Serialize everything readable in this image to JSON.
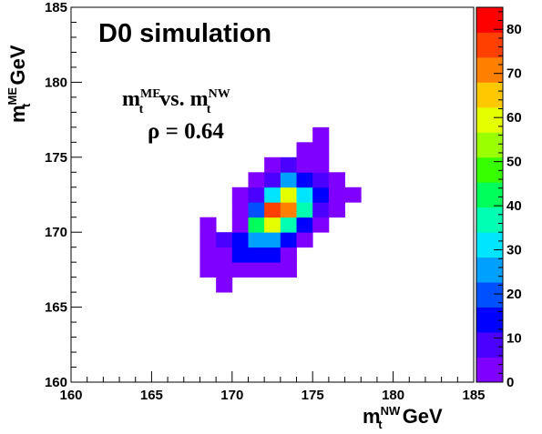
{
  "chart_data": {
    "type": "heatmap",
    "title": "D0 simulation",
    "subtitle_main": "m",
    "subtitle_sup1": "ME",
    "subtitle_sub1": "t",
    "subtitle_mid": " vs. m",
    "subtitle_sup2": "NW",
    "subtitle_sub2": "t",
    "correlation_label": "ρ = 0.64",
    "xlabel": {
      "main": "m",
      "sup": "NW",
      "sub": "t",
      "unit": " GeV"
    },
    "ylabel": {
      "main": "m",
      "sup": "ME",
      "sub": "t",
      "unit": " GeV"
    },
    "xlim": [
      160,
      185
    ],
    "ylim": [
      160,
      185
    ],
    "x_ticks": [
      "160",
      "165",
      "170",
      "175",
      "180",
      "185"
    ],
    "y_ticks": [
      "160",
      "165",
      "170",
      "175",
      "180",
      "185"
    ],
    "z_range": [
      0,
      85
    ],
    "z_ticks": [
      "0",
      "10",
      "20",
      "30",
      "40",
      "50",
      "60",
      "70",
      "80"
    ],
    "palette": [
      "#8000ff",
      "#4b00ff",
      "#0000ff",
      "#0050ff",
      "#00a0ff",
      "#00e5ff",
      "#00ffb3",
      "#00ff5a",
      "#38ff00",
      "#9aff00",
      "#e5ff00",
      "#ffc800",
      "#ff8000",
      "#ff4000",
      "#ff0000"
    ],
    "bin_size": 1,
    "bins": [
      [
        168.5,
        167.5,
        5
      ],
      [
        168.5,
        168.5,
        5
      ],
      [
        168.5,
        169.5,
        5
      ],
      [
        168.5,
        170.5,
        5
      ],
      [
        169.5,
        166.5,
        5
      ],
      [
        169.5,
        167.5,
        5
      ],
      [
        169.5,
        168.5,
        5
      ],
      [
        169.5,
        169.5,
        8
      ],
      [
        170.5,
        167.5,
        5
      ],
      [
        170.5,
        168.5,
        12
      ],
      [
        170.5,
        169.5,
        12
      ],
      [
        170.5,
        170.5,
        5
      ],
      [
        170.5,
        171.5,
        5
      ],
      [
        170.5,
        172.5,
        5
      ],
      [
        171.5,
        167.5,
        5
      ],
      [
        171.5,
        168.5,
        12
      ],
      [
        171.5,
        169.5,
        25
      ],
      [
        171.5,
        170.5,
        45
      ],
      [
        171.5,
        171.5,
        20
      ],
      [
        171.5,
        172.5,
        10
      ],
      [
        171.5,
        173.5,
        5
      ],
      [
        172.5,
        167.5,
        5
      ],
      [
        172.5,
        168.5,
        15
      ],
      [
        172.5,
        169.5,
        28
      ],
      [
        172.5,
        170.5,
        60
      ],
      [
        172.5,
        171.5,
        75
      ],
      [
        172.5,
        172.5,
        30
      ],
      [
        172.5,
        173.5,
        8
      ],
      [
        172.5,
        174.5,
        5
      ],
      [
        173.5,
        167.5,
        5
      ],
      [
        173.5,
        168.5,
        5
      ],
      [
        173.5,
        169.5,
        12
      ],
      [
        173.5,
        170.5,
        35
      ],
      [
        173.5,
        171.5,
        70
      ],
      [
        173.5,
        172.5,
        60
      ],
      [
        173.5,
        173.5,
        25
      ],
      [
        173.5,
        174.5,
        8
      ],
      [
        174.5,
        169.5,
        5
      ],
      [
        174.5,
        170.5,
        12
      ],
      [
        174.5,
        171.5,
        38
      ],
      [
        174.5,
        172.5,
        32
      ],
      [
        174.5,
        173.5,
        12
      ],
      [
        174.5,
        174.5,
        5
      ],
      [
        174.5,
        175.5,
        5
      ],
      [
        175.5,
        170.5,
        5
      ],
      [
        175.5,
        171.5,
        10
      ],
      [
        175.5,
        172.5,
        15
      ],
      [
        175.5,
        173.5,
        10
      ],
      [
        175.5,
        174.5,
        5
      ],
      [
        175.5,
        175.5,
        5
      ],
      [
        175.5,
        176.5,
        5
      ],
      [
        176.5,
        171.5,
        5
      ],
      [
        176.5,
        172.5,
        5
      ],
      [
        176.5,
        173.5,
        5
      ],
      [
        177.5,
        172.5,
        5
      ]
    ]
  }
}
